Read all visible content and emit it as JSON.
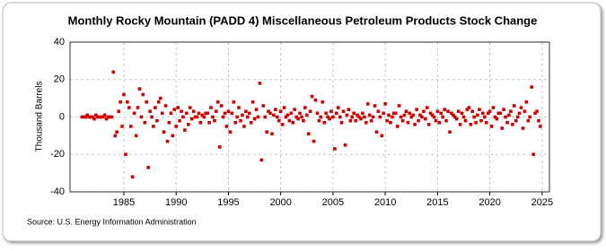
{
  "chart_data": {
    "type": "scatter",
    "title": "Monthly Rocky Mountain (PADD 4) Miscellaneous Petroleum Products Stock Change",
    "y_label": "Thousand Barrels",
    "source": "Source: U.S. Energy Information Administration",
    "color": "#cc0000",
    "grid": true,
    "xlim": [
      1979.85,
      2025.7
    ],
    "xticks": [
      1985,
      1990,
      1995,
      2000,
      2005,
      2010,
      2015,
      2020,
      2025
    ],
    "ylim": [
      -40,
      40
    ],
    "yticks": [
      -40,
      -20,
      0,
      20,
      40
    ],
    "x": [
      1981,
      1981.17,
      1981.33,
      1981.5,
      1981.67,
      1981.83,
      1982,
      1982.17,
      1982.33,
      1982.5,
      1982.67,
      1982.83,
      1983,
      1983.17,
      1983.33,
      1983.5,
      1983.67,
      1983.83,
      1984,
      1984.17,
      1984.33,
      1984.5,
      1984.67,
      1984.83,
      1985,
      1985.17,
      1985.33,
      1985.5,
      1985.67,
      1985.83,
      1986,
      1986.17,
      1986.33,
      1986.5,
      1986.67,
      1986.83,
      1987,
      1987.17,
      1987.33,
      1987.5,
      1987.67,
      1987.83,
      1988,
      1988.17,
      1988.33,
      1988.5,
      1988.67,
      1988.83,
      1989,
      1989.17,
      1989.33,
      1989.5,
      1989.67,
      1989.83,
      1990,
      1990.17,
      1990.33,
      1990.5,
      1990.67,
      1990.83,
      1991,
      1991.17,
      1991.33,
      1991.5,
      1991.67,
      1991.83,
      1992,
      1992.17,
      1992.33,
      1992.5,
      1992.67,
      1992.83,
      1993,
      1993.17,
      1993.33,
      1993.5,
      1993.67,
      1993.83,
      1994,
      1994.17,
      1994.33,
      1994.5,
      1994.67,
      1994.83,
      1995,
      1995.17,
      1995.33,
      1995.5,
      1995.67,
      1995.83,
      1996,
      1996.17,
      1996.33,
      1996.5,
      1996.67,
      1996.83,
      1997,
      1997.17,
      1997.33,
      1997.5,
      1997.67,
      1997.83,
      1998,
      1998.17,
      1998.33,
      1998.5,
      1998.67,
      1998.83,
      1999,
      1999.17,
      1999.33,
      1999.5,
      1999.67,
      1999.83,
      2000,
      2000.17,
      2000.33,
      2000.5,
      2000.67,
      2000.83,
      2001,
      2001.17,
      2001.33,
      2001.5,
      2001.67,
      2001.83,
      2002,
      2002.17,
      2002.33,
      2002.5,
      2002.67,
      2002.83,
      2003,
      2003.17,
      2003.33,
      2003.5,
      2003.67,
      2003.83,
      2004,
      2004.17,
      2004.33,
      2004.5,
      2004.67,
      2004.83,
      2005,
      2005.17,
      2005.33,
      2005.5,
      2005.67,
      2005.83,
      2006,
      2006.17,
      2006.33,
      2006.5,
      2006.67,
      2006.83,
      2007,
      2007.17,
      2007.33,
      2007.5,
      2007.67,
      2007.83,
      2008,
      2008.17,
      2008.33,
      2008.5,
      2008.67,
      2008.83,
      2009,
      2009.17,
      2009.33,
      2009.5,
      2009.67,
      2009.83,
      2010,
      2010.17,
      2010.33,
      2010.5,
      2010.67,
      2010.83,
      2011,
      2011.17,
      2011.33,
      2011.5,
      2011.67,
      2011.83,
      2012,
      2012.17,
      2012.33,
      2012.5,
      2012.67,
      2012.83,
      2013,
      2013.17,
      2013.33,
      2013.5,
      2013.67,
      2013.83,
      2014,
      2014.17,
      2014.33,
      2014.5,
      2014.67,
      2014.83,
      2015,
      2015.17,
      2015.33,
      2015.5,
      2015.67,
      2015.83,
      2016,
      2016.17,
      2016.33,
      2016.5,
      2016.67,
      2016.83,
      2017,
      2017.17,
      2017.33,
      2017.5,
      2017.67,
      2017.83,
      2018,
      2018.17,
      2018.33,
      2018.5,
      2018.67,
      2018.83,
      2019,
      2019.17,
      2019.33,
      2019.5,
      2019.67,
      2019.83,
      2020,
      2020.17,
      2020.33,
      2020.5,
      2020.67,
      2020.83,
      2021,
      2021.17,
      2021.33,
      2021.5,
      2021.67,
      2021.83,
      2022,
      2022.17,
      2022.33,
      2022.5,
      2022.67,
      2022.83,
      2023,
      2023.17,
      2023.33,
      2023.5,
      2023.67,
      2023.83,
      2024,
      2024.17,
      2024.33,
      2024.5,
      2024.67,
      2024.83
    ],
    "values": [
      0,
      0,
      0,
      1,
      0,
      0,
      0,
      -1,
      1,
      0,
      0,
      0,
      0,
      1,
      -1,
      0,
      0,
      0,
      24,
      -10,
      -8,
      3,
      8,
      -5,
      12,
      -20,
      8,
      5,
      -5,
      -32,
      2,
      -10,
      5,
      15,
      0,
      12,
      -3,
      8,
      -27,
      3,
      0,
      -5,
      5,
      -2,
      8,
      10,
      2,
      -8,
      6,
      -13,
      -3,
      2,
      -10,
      4,
      -5,
      5,
      -2,
      3,
      0,
      -7,
      2,
      -4,
      5,
      -1,
      3,
      0,
      0,
      2,
      -3,
      1,
      0,
      2,
      2,
      -3,
      5,
      0,
      -2,
      3,
      8,
      -16,
      6,
      0,
      2,
      -5,
      3,
      -8,
      2,
      8,
      -3,
      0,
      5,
      -2,
      1,
      -5,
      3,
      0,
      2,
      -3,
      8,
      -1,
      4,
      0,
      18,
      -23,
      6,
      0,
      -8,
      3,
      2,
      -9,
      1,
      4,
      0,
      -2,
      3,
      -4,
      5,
      0,
      1,
      -2,
      2,
      -3,
      4,
      0,
      -1,
      2,
      0,
      -2,
      5,
      1,
      -9,
      3,
      11,
      -13,
      9,
      2,
      -2,
      0,
      8,
      -3,
      2,
      0,
      -1,
      3,
      0,
      -17,
      2,
      5,
      0,
      -3,
      3,
      -15,
      1,
      4,
      -2,
      0,
      2,
      -2,
      1,
      0,
      -1,
      2,
      0,
      -3,
      7,
      1,
      -2,
      0,
      6,
      -8,
      3,
      0,
      -10,
      2,
      7,
      -2,
      1,
      -3,
      0,
      2,
      2,
      -5,
      6,
      0,
      -2,
      1,
      3,
      -3,
      2,
      0,
      1,
      -4,
      4,
      -2,
      1,
      0,
      3,
      -1,
      5,
      -4,
      2,
      1,
      0,
      -2,
      3,
      -3,
      2,
      0,
      4,
      -2,
      3,
      -8,
      2,
      1,
      0,
      -1,
      3,
      -4,
      2,
      0,
      -2,
      4,
      5,
      -4,
      3,
      0,
      -3,
      1,
      4,
      -2,
      2,
      0,
      -3,
      2,
      3,
      -5,
      5,
      0,
      -1,
      2,
      2,
      -6,
      4,
      0,
      -3,
      1,
      3,
      -4,
      6,
      -2,
      0,
      2,
      5,
      -6,
      3,
      8,
      -2,
      0,
      16,
      -20,
      2,
      3,
      -2,
      -5
    ]
  }
}
